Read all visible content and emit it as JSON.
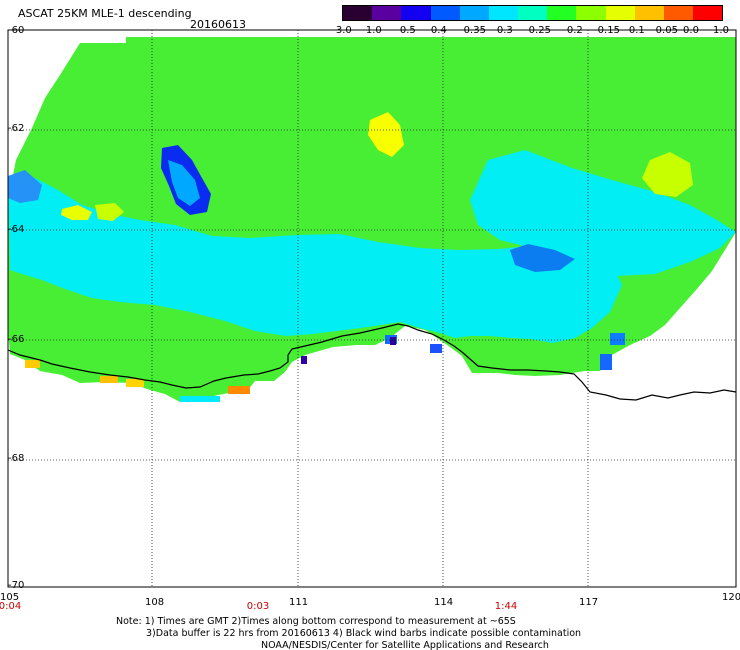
{
  "header": {
    "title": "ASCAT 25KM MLE-1 descending",
    "date": "20160613"
  },
  "colorbar": {
    "labels": [
      "-3.0",
      "-1.0",
      "-0.5",
      "-0.4",
      "-0.35",
      "-0.3",
      "-0.25",
      "-0.2",
      "-0.15",
      "-0.1",
      "-0.05",
      "0.0",
      "1.0"
    ],
    "colors": [
      "#2a0033",
      "#5a00a0",
      "#1400f0",
      "#005aff",
      "#00a8ff",
      "#00e6ff",
      "#00ffc0",
      "#22ff22",
      "#8cff00",
      "#e6ff00",
      "#ffc000",
      "#ff5a00",
      "#ff0000"
    ]
  },
  "axes": {
    "lon_labels": [
      "105",
      "108",
      "111",
      "114",
      "117",
      "120"
    ],
    "lat_labels": [
      "-60",
      "-62",
      "-64",
      "-66",
      "-68",
      "-70"
    ],
    "time_labels": [
      "0:04",
      "0:03",
      "1:44"
    ]
  },
  "map_data": {
    "lon_range": [
      105,
      120
    ],
    "lat_range": [
      -70,
      -60
    ],
    "field": "MLE-1",
    "dominant_colors": {
      "low": "#0a2cf0",
      "mid_low": "#00e6ff",
      "mid": "#22ff22",
      "high": "#ffff00",
      "very_high": "#ff8000"
    }
  },
  "notes": {
    "line1": "Note: 1) Times are GMT 2)Times along bottom correspond to measurement at ~65S",
    "line2": "3)Data buffer is 22 hrs from 20160613 4) Black wind barbs indicate possible contamination",
    "line3": "NOAA/NESDIS/Center for Satellite Applications and Research"
  }
}
